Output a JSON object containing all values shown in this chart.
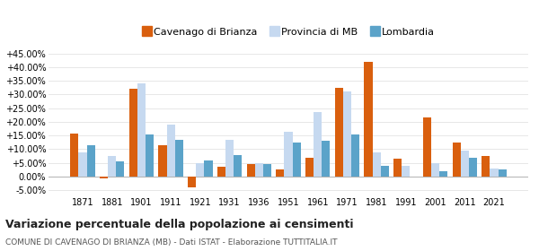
{
  "years": [
    1871,
    1881,
    1901,
    1911,
    1921,
    1931,
    1936,
    1951,
    1961,
    1971,
    1981,
    1991,
    2001,
    2011,
    2021
  ],
  "cavenago": [
    15.8,
    -0.5,
    32.0,
    11.5,
    -4.0,
    3.5,
    4.5,
    2.5,
    7.0,
    32.5,
    42.0,
    6.5,
    21.5,
    12.5,
    7.5
  ],
  "provincia": [
    9.0,
    7.5,
    34.0,
    19.0,
    5.0,
    13.5,
    5.0,
    16.5,
    23.5,
    31.0,
    9.0,
    4.0,
    5.0,
    9.5,
    3.0
  ],
  "lombardia": [
    11.5,
    5.5,
    15.5,
    13.5,
    6.0,
    8.0,
    4.5,
    12.5,
    13.0,
    15.5,
    4.0,
    0.0,
    2.0,
    7.0,
    2.5
  ],
  "color_cavenago": "#d95f0e",
  "color_provincia": "#c6d9f0",
  "color_lombardia": "#5ba3c9",
  "title": "Variazione percentuale della popolazione ai censimenti",
  "subtitle": "COMUNE DI CAVENAGO DI BRIANZA (MB) - Dati ISTAT - Elaborazione TUTTITALIA.IT",
  "ylim": [
    -7.0,
    48.0
  ],
  "yticks": [
    -5.0,
    0.0,
    5.0,
    10.0,
    15.0,
    20.0,
    25.0,
    30.0,
    35.0,
    40.0,
    45.0
  ],
  "legend_labels": [
    "Cavenago di Brianza",
    "Provincia di MB",
    "Lombardia"
  ],
  "bar_width": 0.28
}
